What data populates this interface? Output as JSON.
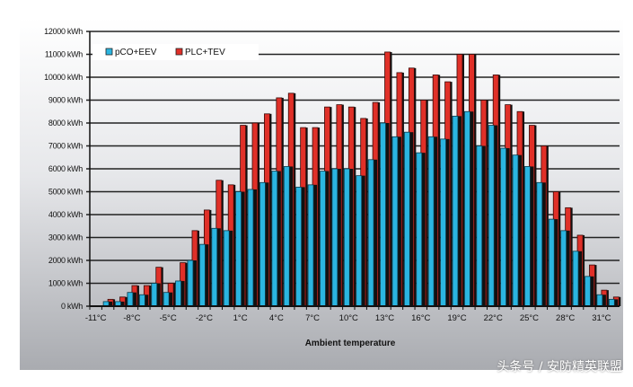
{
  "chart_data": {
    "type": "bar",
    "title": "",
    "xlabel": "Ambient temperature",
    "ylabel": "",
    "ylim": [
      0,
      12000
    ],
    "y_ticks": [
      "0 kWh",
      "1000 kWh",
      "2000 kWh",
      "3000 kWh",
      "4000 kWh",
      "5000 kWh",
      "6000 kWh",
      "7000 kWh",
      "8000 kWh",
      "9000 kWh",
      "10000 kWh",
      "11000 kWh",
      "12000 kWh"
    ],
    "x_tick_labels": [
      "-11°C",
      "-8°C",
      "-5°C",
      "-2°C",
      "1°C",
      "4°C",
      "7°C",
      "10°C",
      "13°C",
      "16°C",
      "19°C",
      "22°C",
      "25°C",
      "28°C",
      "31°C"
    ],
    "categories": [
      -11,
      -10,
      -9,
      -8,
      -7,
      -6,
      -5,
      -4,
      -3,
      -2,
      -1,
      0,
      1,
      2,
      3,
      4,
      5,
      6,
      7,
      8,
      9,
      10,
      11,
      12,
      13,
      14,
      15,
      16,
      17,
      18,
      19,
      20,
      21,
      22,
      23,
      24,
      25,
      26,
      27,
      28,
      29,
      30,
      31,
      32
    ],
    "legend_position": "top-left",
    "grid": true,
    "series": [
      {
        "name": "pCO+EEV",
        "color": "#2bb5e0",
        "values": [
          0,
          200,
          200,
          600,
          500,
          1000,
          600,
          1100,
          2000,
          2700,
          3400,
          3300,
          5000,
          5100,
          5400,
          5900,
          6100,
          5200,
          5300,
          5900,
          6000,
          6000,
          5700,
          6400,
          8000,
          7400,
          7600,
          6700,
          7400,
          7300,
          8300,
          8500,
          7000,
          7900,
          6900,
          6600,
          6100,
          5400,
          3800,
          3300,
          2400,
          1300,
          500,
          300
        ]
      },
      {
        "name": "PLC+TEV",
        "color": "#e03028",
        "values": [
          0,
          300,
          400,
          900,
          900,
          1700,
          1000,
          1900,
          3300,
          4200,
          5500,
          5300,
          7900,
          8000,
          8400,
          9100,
          9300,
          7800,
          7800,
          8700,
          8800,
          8700,
          8200,
          8900,
          11100,
          10200,
          10400,
          9000,
          10100,
          9800,
          11000,
          11000,
          9000,
          10100,
          8800,
          8500,
          7900,
          7000,
          5000,
          4300,
          3100,
          1800,
          700,
          400
        ]
      }
    ]
  },
  "watermark": "头条号 / 安防精英联盟"
}
